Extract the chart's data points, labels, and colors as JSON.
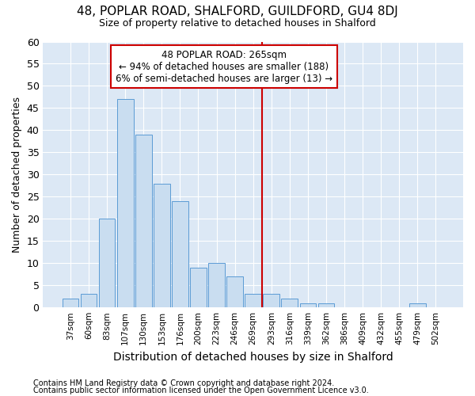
{
  "title": "48, POPLAR ROAD, SHALFORD, GUILDFORD, GU4 8DJ",
  "subtitle": "Size of property relative to detached houses in Shalford",
  "xlabel": "Distribution of detached houses by size in Shalford",
  "ylabel": "Number of detached properties",
  "footer_line1": "Contains HM Land Registry data © Crown copyright and database right 2024.",
  "footer_line2": "Contains public sector information licensed under the Open Government Licence v3.0.",
  "bar_labels": [
    "37sqm",
    "60sqm",
    "83sqm",
    "107sqm",
    "130sqm",
    "153sqm",
    "176sqm",
    "200sqm",
    "223sqm",
    "246sqm",
    "269sqm",
    "293sqm",
    "316sqm",
    "339sqm",
    "362sqm",
    "386sqm",
    "409sqm",
    "432sqm",
    "455sqm",
    "479sqm",
    "502sqm"
  ],
  "bar_values": [
    2,
    3,
    20,
    47,
    39,
    28,
    24,
    9,
    10,
    7,
    3,
    3,
    2,
    1,
    1,
    0,
    0,
    0,
    0,
    1,
    0
  ],
  "bar_color": "#c9ddf0",
  "bar_edge_color": "#5b9bd5",
  "figure_bg": "#ffffff",
  "axes_bg": "#dce8f5",
  "grid_color": "#ffffff",
  "red_line_x": 10.5,
  "annotation_line1": "48 POPLAR ROAD: 265sqm",
  "annotation_line2": "← 94% of detached houses are smaller (188)",
  "annotation_line3": "6% of semi-detached houses are larger (13) →",
  "annotation_box_fc": "#ffffff",
  "annotation_box_ec": "#cc0000",
  "ylim": [
    0,
    60
  ],
  "yticks": [
    0,
    5,
    10,
    15,
    20,
    25,
    30,
    35,
    40,
    45,
    50,
    55,
    60
  ]
}
